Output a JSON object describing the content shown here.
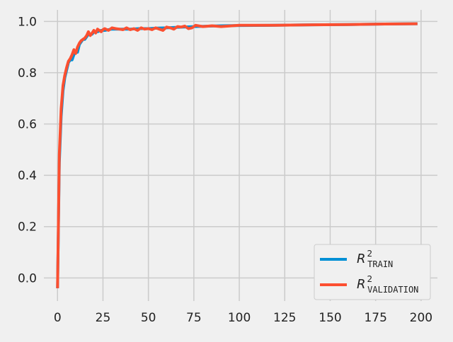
{
  "chart_data": {
    "type": "line",
    "title": "",
    "xlabel": "",
    "ylabel": "",
    "xlim": [
      -7.5,
      209
    ],
    "ylim": [
      -0.09,
      1.045
    ],
    "x_ticks": [
      0,
      25,
      50,
      75,
      100,
      125,
      150,
      175,
      200
    ],
    "y_ticks": [
      0.0,
      0.2,
      0.4,
      0.6,
      0.8,
      1.0
    ],
    "x_tick_labels": [
      "0",
      "25",
      "50",
      "75",
      "100",
      "125",
      "150",
      "175",
      "200"
    ],
    "y_tick_labels": [
      "0.0",
      "0.2",
      "0.4",
      "0.6",
      "0.8",
      "1.0"
    ],
    "grid": true,
    "legend_position": "bottom-right",
    "series": [
      {
        "name": "R²_TRAIN",
        "legend_base": "R",
        "legend_sup": "2",
        "legend_sub": "TRAIN",
        "color": "#008fd5",
        "x": [
          0,
          1,
          2,
          3,
          4,
          5,
          6,
          7,
          8,
          9,
          10,
          11,
          12,
          13,
          14,
          15,
          16,
          17,
          18,
          19,
          20,
          22,
          24,
          26,
          28,
          30,
          35,
          40,
          45,
          50,
          55,
          60,
          65,
          70,
          75,
          80,
          90,
          100,
          120,
          140,
          160,
          180,
          198
        ],
        "values": [
          -0.04,
          0.45,
          0.63,
          0.73,
          0.78,
          0.81,
          0.84,
          0.85,
          0.85,
          0.87,
          0.88,
          0.88,
          0.91,
          0.92,
          0.93,
          0.93,
          0.94,
          0.95,
          0.95,
          0.95,
          0.96,
          0.96,
          0.965,
          0.965,
          0.968,
          0.97,
          0.97,
          0.97,
          0.972,
          0.972,
          0.974,
          0.975,
          0.977,
          0.978,
          0.98,
          0.981,
          0.983,
          0.984,
          0.985,
          0.987,
          0.988,
          0.99,
          0.991
        ]
      },
      {
        "name": "R²_VALIDATION",
        "legend_base": "R",
        "legend_sup": "2",
        "legend_sub": "VALIDATION",
        "color": "#fc4f30",
        "x": [
          0,
          1,
          2,
          3,
          4,
          5,
          6,
          7,
          8,
          9,
          10,
          11,
          12,
          13,
          14,
          15,
          16,
          17,
          18,
          19,
          20,
          21,
          22,
          23,
          24,
          25,
          26,
          28,
          30,
          32,
          34,
          36,
          38,
          40,
          42,
          44,
          46,
          48,
          50,
          52,
          54,
          56,
          58,
          60,
          62,
          64,
          66,
          68,
          70,
          72,
          74,
          76,
          80,
          85,
          90,
          100,
          120,
          140,
          160,
          180,
          198
        ],
        "values": [
          -0.04,
          0.48,
          0.66,
          0.75,
          0.79,
          0.82,
          0.845,
          0.855,
          0.87,
          0.89,
          0.875,
          0.9,
          0.915,
          0.925,
          0.93,
          0.935,
          0.945,
          0.96,
          0.945,
          0.955,
          0.965,
          0.955,
          0.97,
          0.965,
          0.96,
          0.968,
          0.972,
          0.965,
          0.975,
          0.972,
          0.97,
          0.968,
          0.975,
          0.968,
          0.972,
          0.965,
          0.975,
          0.97,
          0.972,
          0.968,
          0.975,
          0.97,
          0.965,
          0.978,
          0.975,
          0.97,
          0.98,
          0.978,
          0.982,
          0.972,
          0.975,
          0.985,
          0.98,
          0.983,
          0.98,
          0.985,
          0.985,
          0.987,
          0.988,
          0.99,
          0.991
        ]
      }
    ]
  }
}
